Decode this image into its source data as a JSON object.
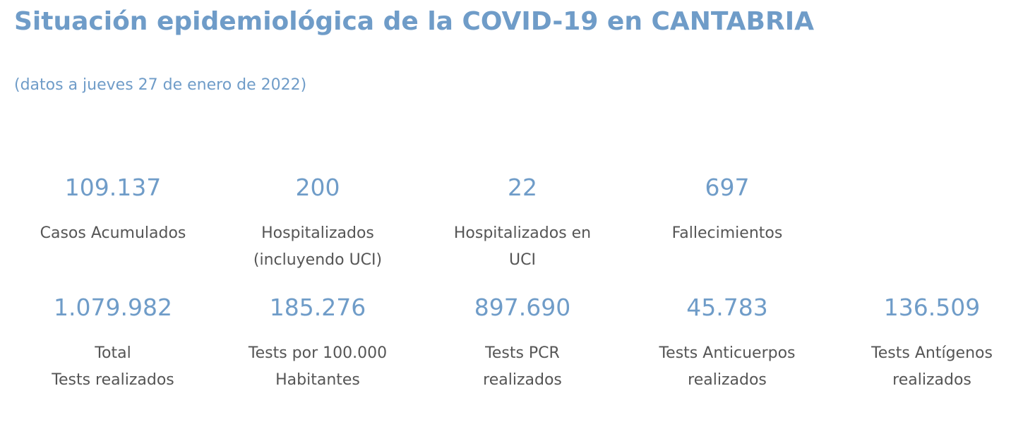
{
  "header": {
    "title": "Situación epidemiológica de la COVID-19 en CANTABRIA",
    "subtitle": "(datos a jueves 27 de enero de 2022)"
  },
  "stats_row1": [
    {
      "value": "109.137",
      "label_lines": [
        "Casos Acumulados"
      ]
    },
    {
      "value": "200",
      "label_lines": [
        "Hospitalizados",
        "(incluyendo UCI)"
      ]
    },
    {
      "value": "22",
      "label_lines": [
        "Hospitalizados en",
        "UCI"
      ]
    },
    {
      "value": "697",
      "label_lines": [
        "Fallecimientos"
      ]
    }
  ],
  "stats_row2": [
    {
      "value": "1.079.982",
      "label_lines": [
        "Total",
        "Tests realizados"
      ]
    },
    {
      "value": "185.276",
      "label_lines": [
        "Tests por 100.000",
        "Habitantes"
      ]
    },
    {
      "value": "897.690",
      "label_lines": [
        "Tests PCR",
        "realizados"
      ]
    },
    {
      "value": "45.783",
      "label_lines": [
        "Tests Anticuerpos",
        "realizados"
      ]
    },
    {
      "value": "136.509",
      "label_lines": [
        "Tests Antígenos",
        "realizados"
      ]
    }
  ],
  "colors": {
    "accent": "#6f9cc8",
    "label_text": "#555555"
  }
}
